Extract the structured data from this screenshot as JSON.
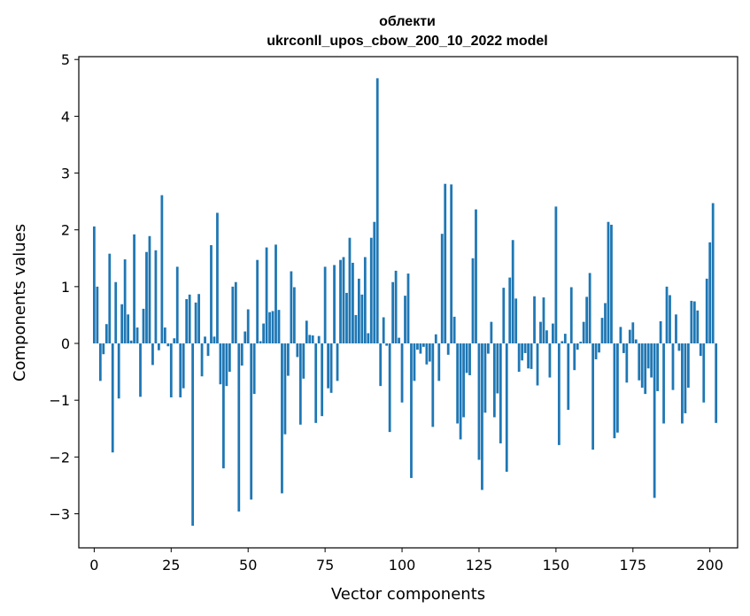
{
  "chart_data": {
    "type": "bar",
    "title_line1": "облекти",
    "title_line2": "ukrconll_upos_cbow_200_10_2022 model",
    "xlabel": "Vector components",
    "ylabel": "Components values",
    "xlim": [
      -5,
      209
    ],
    "ylim": [
      -3.6,
      5.05
    ],
    "xticks": [
      0,
      25,
      50,
      75,
      100,
      125,
      150,
      175,
      200
    ],
    "yticks": [
      -3,
      -2,
      -1,
      0,
      1,
      2,
      3,
      4,
      5
    ],
    "bar_color": "#1f77b4",
    "grid": false,
    "legend": "none",
    "values": [
      2.06,
      1.0,
      -0.66,
      -0.19,
      0.34,
      1.58,
      -1.92,
      1.08,
      -0.97,
      0.69,
      1.48,
      0.51,
      0.05,
      1.92,
      0.28,
      -0.94,
      0.61,
      1.61,
      1.89,
      -0.38,
      1.64,
      -0.12,
      2.61,
      0.28,
      -0.05,
      -0.95,
      0.09,
      1.35,
      -0.95,
      -0.79,
      0.78,
      0.86,
      -3.21,
      0.72,
      0.87,
      -0.58,
      0.12,
      -0.22,
      1.73,
      0.12,
      2.3,
      -0.72,
      -2.2,
      -0.75,
      -0.5,
      1.0,
      1.08,
      -2.96,
      -0.39,
      0.21,
      0.6,
      -2.75,
      -0.89,
      1.47,
      0.04,
      0.35,
      1.69,
      0.55,
      0.57,
      1.74,
      0.59,
      -2.64,
      -1.6,
      -0.57,
      1.27,
      0.99,
      -0.24,
      -1.43,
      -0.62,
      0.4,
      0.15,
      0.14,
      -1.4,
      0.13,
      -1.28,
      1.35,
      -0.79,
      -0.87,
      1.38,
      -0.66,
      1.47,
      1.52,
      0.89,
      1.86,
      1.42,
      0.5,
      1.14,
      0.86,
      1.52,
      0.18,
      1.86,
      2.14,
      4.67,
      -0.75,
      0.46,
      -0.04,
      -1.56,
      1.08,
      1.28,
      0.1,
      -1.04,
      0.84,
      1.23,
      -2.37,
      -0.66,
      -0.11,
      -0.18,
      -0.06,
      -0.37,
      -0.32,
      -1.47,
      0.16,
      -0.66,
      1.93,
      2.81,
      -0.2,
      2.8,
      0.47,
      -1.41,
      -1.69,
      -1.3,
      -0.52,
      -0.56,
      1.5,
      2.36,
      -2.05,
      -2.58,
      -1.22,
      -0.18,
      0.38,
      -1.3,
      -0.88,
      -1.76,
      0.98,
      -2.26,
      1.16,
      1.82,
      0.79,
      -0.5,
      -0.3,
      -0.17,
      -0.44,
      -0.45,
      0.83,
      -0.74,
      0.38,
      0.81,
      0.23,
      -0.6,
      0.35,
      2.41,
      -1.79,
      0.04,
      0.17,
      -1.17,
      0.99,
      -0.47,
      -0.11,
      0.03,
      0.38,
      0.82,
      1.24,
      -1.87,
      -0.28,
      -0.16,
      0.45,
      0.71,
      2.14,
      2.09,
      -1.67,
      -1.57,
      0.29,
      -0.17,
      -0.69,
      0.24,
      0.37,
      0.07,
      -0.65,
      -0.78,
      -0.89,
      -0.44,
      -0.6,
      -2.72,
      -0.84,
      0.39,
      -1.41,
      1.0,
      0.85,
      -0.82,
      0.51,
      -0.13,
      -1.41,
      -1.23,
      -0.78,
      0.75,
      0.74,
      0.58,
      -0.22,
      -1.04,
      1.14,
      1.78,
      2.47,
      -1.4
    ]
  }
}
